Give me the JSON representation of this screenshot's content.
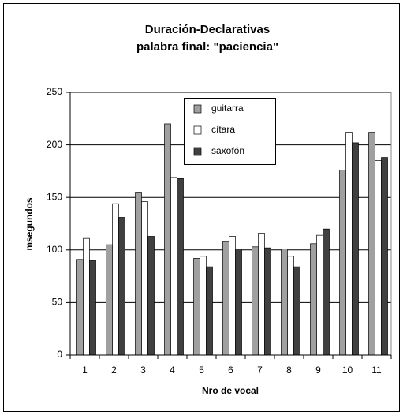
{
  "chart_data": {
    "type": "bar",
    "title": "Duración-Declarativas",
    "subtitle": "palabra final: \"paciencia\"",
    "x_label": "Nro de vocal",
    "y_label": "msegundos",
    "categories": [
      "1",
      "2",
      "3",
      "4",
      "5",
      "6",
      "7",
      "8",
      "9",
      "10",
      "11"
    ],
    "series": [
      {
        "name": "guitarra",
        "color": "#a0a0a0",
        "values": [
          91,
          105,
          155,
          220,
          92,
          108,
          103,
          101,
          106,
          176,
          212
        ]
      },
      {
        "name": "cítara",
        "color": "#ffffff",
        "values": [
          111,
          144,
          146,
          169,
          94,
          113,
          116,
          94,
          114,
          212,
          185
        ]
      },
      {
        "name": "saxofón",
        "color": "#404040",
        "values": [
          90,
          131,
          113,
          168,
          84,
          101,
          102,
          84,
          120,
          202,
          188
        ]
      }
    ],
    "ylim": [
      0,
      250
    ],
    "yticks": [
      0,
      50,
      100,
      150,
      200,
      250
    ],
    "grid": true,
    "legend": "top"
  }
}
